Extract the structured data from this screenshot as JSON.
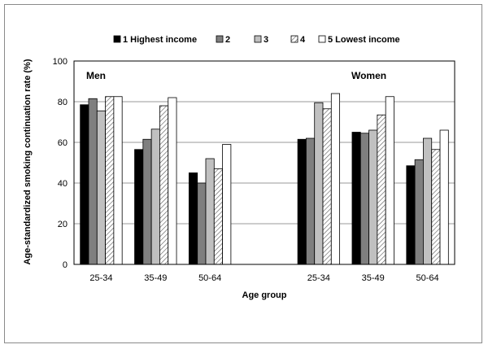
{
  "chart_data": {
    "type": "bar",
    "xlabel": "Age group",
    "ylabel": "Age-standardized  smoking  continuation  rate (%)",
    "ylim": [
      0,
      100
    ],
    "yticks": [
      0,
      20,
      40,
      60,
      80,
      100
    ],
    "grid": "horizontal",
    "legend_placement": "top",
    "legend": [
      "1 Highest income",
      "2",
      "3",
      "4",
      "5 Lowest income"
    ],
    "series_styles": [
      {
        "fill": "#000000",
        "pattern": "solid"
      },
      {
        "fill": "#7f7f7f",
        "pattern": "solid"
      },
      {
        "fill": "#c0c0c0",
        "pattern": "solid"
      },
      {
        "fill": "#ffffff",
        "pattern": "diagonal-hatch"
      },
      {
        "fill": "#ffffff",
        "pattern": "solid"
      }
    ],
    "panels": [
      {
        "title": "Men",
        "categories": [
          "25-34",
          "35-49",
          "50-64"
        ],
        "series": [
          {
            "name": "1 Highest income",
            "values": [
              78.5,
              56.5,
              45.0
            ]
          },
          {
            "name": "2",
            "values": [
              81.5,
              61.5,
              40.0
            ]
          },
          {
            "name": "3",
            "values": [
              75.5,
              66.5,
              52.0
            ]
          },
          {
            "name": "4",
            "values": [
              82.5,
              78.0,
              47.0
            ]
          },
          {
            "name": "5 Lowest income",
            "values": [
              82.5,
              82.0,
              59.0
            ]
          }
        ]
      },
      {
        "title": "Women",
        "categories": [
          "25-34",
          "35-49",
          "50-64"
        ],
        "series": [
          {
            "name": "1 Highest income",
            "values": [
              61.5,
              65.0,
              48.5
            ]
          },
          {
            "name": "2",
            "values": [
              62.0,
              64.5,
              51.5
            ]
          },
          {
            "name": "3",
            "values": [
              79.5,
              66.0,
              62.0
            ]
          },
          {
            "name": "4",
            "values": [
              76.5,
              73.5,
              56.5
            ]
          },
          {
            "name": "5 Lowest income",
            "values": [
              84.0,
              82.5,
              66.0
            ]
          }
        ]
      }
    ]
  }
}
